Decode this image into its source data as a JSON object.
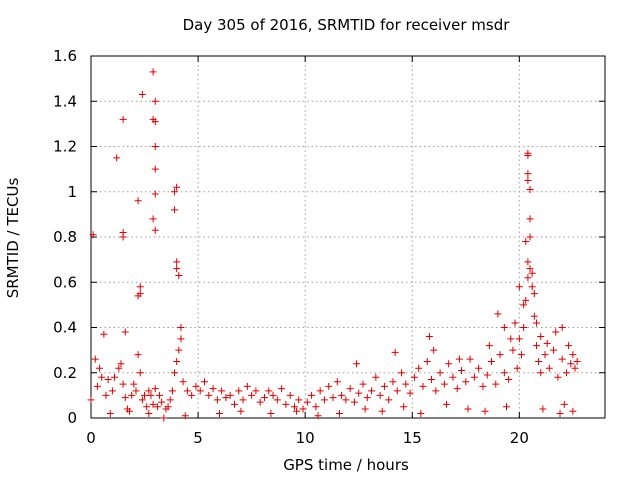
{
  "chart_data": {
    "type": "scatter",
    "title": "Day 305 of 2016, SRMTID for receiver msdr",
    "xlabel": "GPS time / hours",
    "ylabel": "SRMTID / TECUs",
    "xlim": [
      0,
      24
    ],
    "ylim": [
      0,
      1.6
    ],
    "x_ticks": [
      0,
      5,
      10,
      15,
      20
    ],
    "x_tick_labels": [
      "0",
      "5",
      "10",
      "15",
      "20"
    ],
    "y_ticks": [
      0,
      0.2,
      0.4,
      0.6,
      0.8,
      1,
      1.2,
      1.4,
      1.6
    ],
    "y_tick_labels": [
      "0",
      "0.2",
      "0.4",
      "0.6",
      "0.8",
      "1",
      "1.2",
      "1.4",
      "1.6"
    ],
    "grid": true,
    "marker": "plus",
    "color": "#e00000",
    "series": [
      {
        "name": "SRMTID",
        "x": [
          0.0,
          0.2,
          0.3,
          0.4,
          0.5,
          0.7,
          0.8,
          1.0,
          1.1,
          1.3,
          1.4,
          1.5,
          1.6,
          1.7,
          1.9,
          2.0,
          2.1,
          2.2,
          2.3,
          2.4,
          2.5,
          2.6,
          2.7,
          2.8,
          2.9,
          3.0,
          3.1,
          3.2,
          3.3,
          3.5,
          3.6,
          3.8,
          3.9,
          4.0,
          4.1,
          4.2,
          4.3,
          4.5,
          4.7,
          4.9,
          5.1,
          5.3,
          5.5,
          5.7,
          5.9,
          6.1,
          6.3,
          6.5,
          6.7,
          6.9,
          7.1,
          7.3,
          7.5,
          7.7,
          7.9,
          8.1,
          8.3,
          8.5,
          8.7,
          8.9,
          9.1,
          9.3,
          9.5,
          9.7,
          9.9,
          10.1,
          10.3,
          10.5,
          10.7,
          10.9,
          11.1,
          11.3,
          11.5,
          11.7,
          11.9,
          12.1,
          12.3,
          12.5,
          12.7,
          12.9,
          13.1,
          13.3,
          13.5,
          13.7,
          13.9,
          14.1,
          14.3,
          14.5,
          14.7,
          14.9,
          15.1,
          15.3,
          15.5,
          15.7,
          15.9,
          16.1,
          16.3,
          16.5,
          16.7,
          16.9,
          17.1,
          17.3,
          17.5,
          17.7,
          17.9,
          18.1,
          18.3,
          18.5,
          18.7,
          18.9,
          19.1,
          19.3,
          19.5,
          19.7,
          19.9,
          20.0,
          20.1,
          20.2,
          20.3,
          20.4,
          20.5,
          20.6,
          20.7,
          20.8,
          20.9,
          21.0,
          21.2,
          21.4,
          21.6,
          21.8,
          22.0,
          22.2,
          22.4,
          22.6,
          22.7,
          0.1,
          0.6,
          1.2,
          1.5,
          1.6,
          2.2,
          2.4,
          2.9,
          3.0,
          2.9,
          3.0,
          2.3,
          2.3,
          2.2,
          1.5,
          1.5,
          3.0,
          3.0,
          3.0,
          3.9,
          4.0,
          3.9,
          4.0,
          4.0,
          4.1,
          4.2,
          2.9,
          3.0,
          19.0,
          19.3,
          19.6,
          19.8,
          20.0,
          20.2,
          20.3,
          20.4,
          20.4,
          20.4,
          20.4,
          20.5,
          20.5,
          20.5,
          20.4,
          20.6,
          20.7,
          20.8,
          21.0,
          21.3,
          21.7,
          22.0,
          22.3,
          22.5,
          17.2,
          16.0,
          14.2,
          12.4,
          15.8,
          18.6,
          0.9,
          1.8,
          2.7,
          3.4,
          3.7,
          4.4,
          6.0,
          7.0,
          8.4,
          9.6,
          10.6,
          11.6,
          12.8,
          13.6,
          14.6,
          15.4,
          16.6,
          17.6,
          18.4,
          19.4,
          21.1,
          21.9,
          22.1,
          22.5
        ],
        "y": [
          0.08,
          0.26,
          0.14,
          0.22,
          0.18,
          0.1,
          0.17,
          0.12,
          0.18,
          0.22,
          0.24,
          0.15,
          0.09,
          0.04,
          0.1,
          0.15,
          0.12,
          0.28,
          0.2,
          0.08,
          0.1,
          0.05,
          0.12,
          0.1,
          0.06,
          0.13,
          0.05,
          0.1,
          0.07,
          0.04,
          0.05,
          0.12,
          0.2,
          0.25,
          0.3,
          0.35,
          0.16,
          0.12,
          0.1,
          0.14,
          0.12,
          0.16,
          0.1,
          0.13,
          0.08,
          0.12,
          0.09,
          0.1,
          0.06,
          0.12,
          0.08,
          0.14,
          0.1,
          0.12,
          0.07,
          0.09,
          0.12,
          0.1,
          0.08,
          0.13,
          0.06,
          0.1,
          0.05,
          0.08,
          0.04,
          0.07,
          0.1,
          0.05,
          0.12,
          0.08,
          0.14,
          0.09,
          0.16,
          0.1,
          0.08,
          0.13,
          0.07,
          0.11,
          0.15,
          0.09,
          0.12,
          0.18,
          0.1,
          0.14,
          0.08,
          0.16,
          0.12,
          0.2,
          0.15,
          0.11,
          0.18,
          0.22,
          0.14,
          0.25,
          0.17,
          0.12,
          0.2,
          0.15,
          0.24,
          0.18,
          0.13,
          0.21,
          0.16,
          0.26,
          0.18,
          0.22,
          0.14,
          0.19,
          0.25,
          0.15,
          0.28,
          0.2,
          0.17,
          0.3,
          0.22,
          0.35,
          0.28,
          0.4,
          0.52,
          0.62,
          0.66,
          0.58,
          0.45,
          0.32,
          0.25,
          0.2,
          0.28,
          0.22,
          0.3,
          0.18,
          0.26,
          0.2,
          0.24,
          0.22,
          0.25,
          0.81,
          0.37,
          1.15,
          1.32,
          0.38,
          0.96,
          1.43,
          1.53,
          1.4,
          1.32,
          1.31,
          0.58,
          0.55,
          0.54,
          0.82,
          0.8,
          1.2,
          1.1,
          0.99,
          1.0,
          1.02,
          0.92,
          0.69,
          0.66,
          0.63,
          0.4,
          0.88,
          0.83,
          0.46,
          0.4,
          0.35,
          0.42,
          0.58,
          0.5,
          0.78,
          1.17,
          1.16,
          1.08,
          1.05,
          1.01,
          0.88,
          0.8,
          0.69,
          0.64,
          0.55,
          0.42,
          0.36,
          0.33,
          0.38,
          0.4,
          0.32,
          0.28,
          0.26,
          0.3,
          0.29,
          0.24,
          0.36,
          0.32,
          0.02,
          0.03,
          0.02,
          0.0,
          0.08,
          0.01,
          0.02,
          0.03,
          0.02,
          0.03,
          0.01,
          0.02,
          0.04,
          0.03,
          0.05,
          0.02,
          0.06,
          0.04,
          0.03,
          0.05,
          0.04,
          0.02,
          0.06,
          0.03
        ]
      }
    ]
  }
}
